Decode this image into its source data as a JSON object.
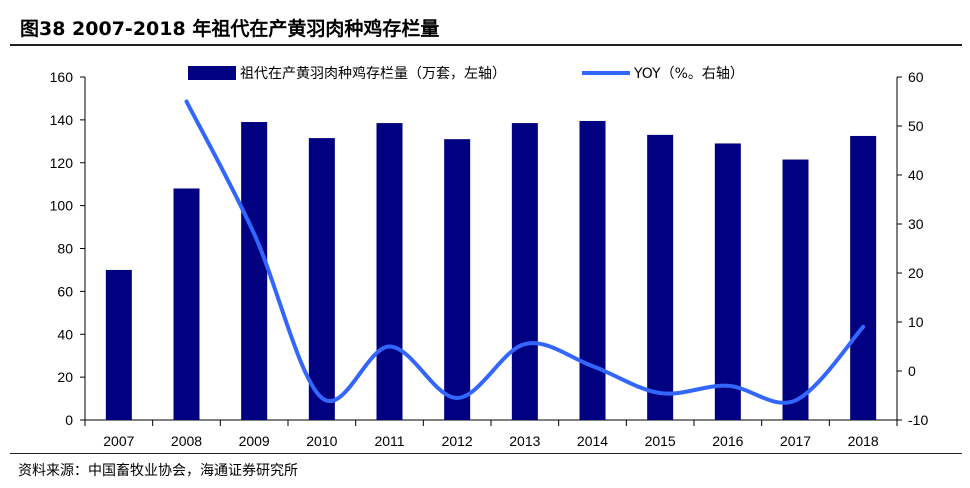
{
  "title": "图38 2007-2018 年祖代在产黄羽肉种鸡存栏量",
  "source": "资料来源：中国畜牧业协会，海通证券研究所",
  "chart_data": {
    "type": "bar+line",
    "categories": [
      "2007",
      "2008",
      "2009",
      "2010",
      "2011",
      "2012",
      "2013",
      "2014",
      "2015",
      "2016",
      "2017",
      "2018"
    ],
    "series": [
      {
        "name": "祖代在产黄羽肉种鸡存栏量（万套，左轴）",
        "axis": "left",
        "kind": "bar",
        "color": "#000080",
        "values": [
          70,
          108,
          139,
          131.5,
          138.5,
          131,
          138.5,
          139.5,
          133,
          129,
          121.5,
          132.5
        ]
      },
      {
        "name": "YOY（%。右轴）",
        "axis": "right",
        "kind": "line",
        "color": "#3366FF",
        "values": [
          null,
          55,
          28,
          -5.5,
          5,
          -5.5,
          5.5,
          1,
          -4.5,
          -3,
          -6,
          9
        ]
      }
    ],
    "y_left": {
      "min": 0,
      "max": 160,
      "ticks": [
        "0",
        "20",
        "40",
        "60",
        "80",
        "100",
        "120",
        "140",
        "160"
      ]
    },
    "y_right": {
      "min": -10,
      "max": 60,
      "ticks": [
        "-10",
        "0",
        "10",
        "20",
        "30",
        "40",
        "50",
        "60"
      ]
    },
    "legend_position": "top"
  }
}
